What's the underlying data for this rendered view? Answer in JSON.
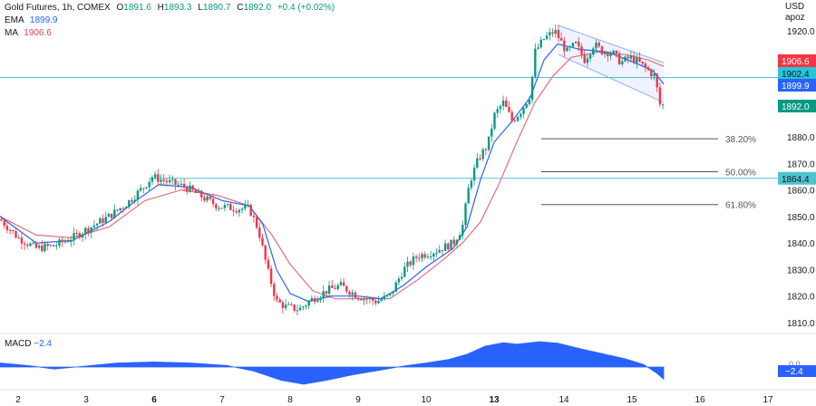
{
  "header": {
    "symbol": "Gold Futures, 1h, COMEX",
    "o_label": "O",
    "o": "1891.6",
    "h_label": "H",
    "h": "1893.3",
    "l_label": "L",
    "l": "1890.7",
    "c_label": "C",
    "c": "1892.0",
    "change": "+0.4 (+0.02%)",
    "ema_label": "EMA",
    "ema_value": "1899.9",
    "ma_label": "MA",
    "ma_value": "1906.6",
    "currency": "USD",
    "scale_mode": "apoz"
  },
  "macd": {
    "label": "MACD",
    "value": "−2.4",
    "badge": "−2.4",
    "zero_label": "0.0"
  },
  "chart_data": {
    "type": "candlestick",
    "ylim": [
      1805,
      1925
    ],
    "y_ticks": [
      1810,
      1820,
      1830,
      1840,
      1850,
      1860,
      1870,
      1880,
      1920
    ],
    "x_ticks": [
      {
        "label": "2",
        "t": 20
      },
      {
        "label": "3",
        "t": 95
      },
      {
        "label": "6",
        "t": 170
      },
      {
        "label": "7",
        "t": 245
      },
      {
        "label": "8",
        "t": 320
      },
      {
        "label": "9",
        "t": 395
      },
      {
        "label": "10",
        "t": 470
      },
      {
        "label": "13",
        "t": 545
      },
      {
        "label": "14",
        "t": 622
      },
      {
        "label": "15",
        "t": 697
      },
      {
        "label": "16",
        "t": 772
      },
      {
        "label": "17",
        "t": 847
      }
    ],
    "price_path": [
      [
        0,
        1849
      ],
      [
        20,
        1842
      ],
      [
        40,
        1838
      ],
      [
        60,
        1839
      ],
      [
        80,
        1842
      ],
      [
        100,
        1846
      ],
      [
        120,
        1850
      ],
      [
        140,
        1855
      ],
      [
        158,
        1861
      ],
      [
        168,
        1865
      ],
      [
        185,
        1863
      ],
      [
        205,
        1861
      ],
      [
        220,
        1858
      ],
      [
        240,
        1854
      ],
      [
        260,
        1853
      ],
      [
        275,
        1853
      ],
      [
        285,
        1845
      ],
      [
        295,
        1830
      ],
      [
        305,
        1818
      ],
      [
        315,
        1816
      ],
      [
        330,
        1815
      ],
      [
        345,
        1819
      ],
      [
        360,
        1822
      ],
      [
        375,
        1824
      ],
      [
        395,
        1820
      ],
      [
        415,
        1818
      ],
      [
        430,
        1820
      ],
      [
        445,
        1830
      ],
      [
        460,
        1835
      ],
      [
        480,
        1837
      ],
      [
        500,
        1840
      ],
      [
        510,
        1846
      ],
      [
        518,
        1863
      ],
      [
        528,
        1872
      ],
      [
        538,
        1877
      ],
      [
        545,
        1888
      ],
      [
        555,
        1893
      ],
      [
        565,
        1886
      ],
      [
        575,
        1890
      ],
      [
        585,
        1896
      ],
      [
        590,
        1912
      ],
      [
        600,
        1917
      ],
      [
        612,
        1920
      ],
      [
        625,
        1912
      ],
      [
        635,
        1915
      ],
      [
        645,
        1909
      ],
      [
        655,
        1915
      ],
      [
        665,
        1912
      ],
      [
        675,
        1912
      ],
      [
        685,
        1908
      ],
      [
        695,
        1910
      ],
      [
        705,
        1908
      ],
      [
        715,
        1905
      ],
      [
        722,
        1903
      ],
      [
        728,
        1892
      ],
      [
        732,
        1892
      ]
    ],
    "series": [
      {
        "name": "EMA",
        "values": "ema",
        "color": "#2962ff"
      },
      {
        "name": "MA",
        "values": "ma",
        "color": "#e07080"
      }
    ],
    "ema_path": [
      [
        0,
        1850
      ],
      [
        40,
        1840
      ],
      [
        80,
        1841
      ],
      [
        120,
        1848
      ],
      [
        150,
        1856
      ],
      [
        175,
        1862
      ],
      [
        210,
        1861
      ],
      [
        245,
        1856
      ],
      [
        275,
        1854
      ],
      [
        290,
        1847
      ],
      [
        305,
        1830
      ],
      [
        320,
        1821
      ],
      [
        340,
        1818
      ],
      [
        365,
        1820
      ],
      [
        395,
        1820
      ],
      [
        420,
        1819
      ],
      [
        445,
        1824
      ],
      [
        470,
        1831
      ],
      [
        500,
        1838
      ],
      [
        515,
        1846
      ],
      [
        530,
        1864
      ],
      [
        545,
        1878
      ],
      [
        565,
        1886
      ],
      [
        585,
        1895
      ],
      [
        600,
        1909
      ],
      [
        615,
        1915
      ],
      [
        640,
        1913
      ],
      [
        670,
        1912
      ],
      [
        700,
        1908
      ],
      [
        720,
        1905
      ],
      [
        732,
        1899.9
      ]
    ],
    "ma_path": [
      [
        0,
        1850
      ],
      [
        40,
        1843
      ],
      [
        80,
        1842
      ],
      [
        120,
        1846
      ],
      [
        160,
        1856
      ],
      [
        200,
        1860
      ],
      [
        240,
        1858
      ],
      [
        275,
        1854
      ],
      [
        300,
        1843
      ],
      [
        320,
        1832
      ],
      [
        345,
        1822
      ],
      [
        370,
        1819
      ],
      [
        400,
        1819
      ],
      [
        430,
        1819
      ],
      [
        460,
        1826
      ],
      [
        490,
        1834
      ],
      [
        510,
        1840
      ],
      [
        530,
        1848
      ],
      [
        550,
        1862
      ],
      [
        570,
        1878
      ],
      [
        590,
        1893
      ],
      [
        610,
        1903
      ],
      [
        630,
        1910
      ],
      [
        660,
        1912
      ],
      [
        690,
        1911
      ],
      [
        715,
        1909
      ],
      [
        732,
        1906.6
      ]
    ],
    "levels": [
      {
        "name": "resistance",
        "price": 1902.4,
        "color": "#4dc4cf",
        "label": "1902.4"
      },
      {
        "name": "support",
        "price": 1864.4,
        "color": "#4dc4cf",
        "label": "1864.4",
        "from_t": 165
      }
    ],
    "price_badges": [
      {
        "label": "1906.6",
        "price": 1906.6,
        "color": "#f23645"
      },
      {
        "label": "1902.4",
        "price": 1902.4,
        "color": "#26c6da"
      },
      {
        "label": "1899.9",
        "price": 1899.9,
        "color": "#2962ff"
      },
      {
        "label": "1892.0",
        "price": 1892.0,
        "color": "#089981"
      }
    ],
    "fibonacci": [
      {
        "label": "38.20%",
        "price": 1879.3
      },
      {
        "label": "50.00%",
        "price": 1866.9
      },
      {
        "label": "61.80%",
        "price": 1854.5
      }
    ],
    "channel": {
      "upper": [
        [
          616,
          1922
        ],
        [
          732,
          1908
        ]
      ],
      "lower": [
        [
          616,
          1911
        ],
        [
          732,
          1893
        ]
      ],
      "color": "#2962ff"
    },
    "macd_path": [
      [
        0,
        0.8
      ],
      [
        30,
        0.3
      ],
      [
        60,
        -0.4
      ],
      [
        90,
        0.1
      ],
      [
        130,
        0.8
      ],
      [
        170,
        1.0
      ],
      [
        210,
        0.8
      ],
      [
        250,
        0.3
      ],
      [
        280,
        -0.8
      ],
      [
        310,
        -2.6
      ],
      [
        335,
        -3.4
      ],
      [
        360,
        -2.6
      ],
      [
        390,
        -1.5
      ],
      [
        420,
        -0.6
      ],
      [
        445,
        0.2
      ],
      [
        470,
        0.8
      ],
      [
        495,
        1.5
      ],
      [
        515,
        2.5
      ],
      [
        535,
        4.1
      ],
      [
        555,
        4.8
      ],
      [
        570,
        4.5
      ],
      [
        595,
        5.0
      ],
      [
        615,
        4.7
      ],
      [
        640,
        3.6
      ],
      [
        665,
        2.6
      ],
      [
        690,
        1.6
      ],
      [
        710,
        0.5
      ],
      [
        725,
        -1.3
      ],
      [
        732,
        -2.4
      ]
    ],
    "macd_ylim": [
      -4.5,
      6
    ]
  }
}
